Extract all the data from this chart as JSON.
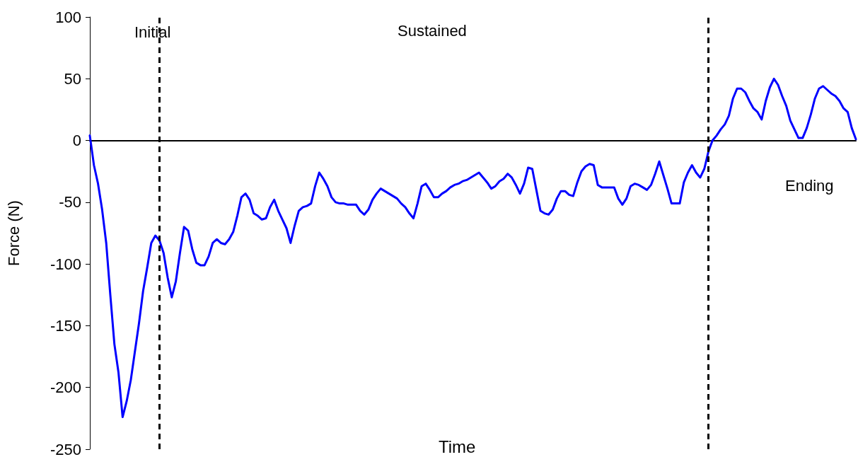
{
  "chart_data": {
    "type": "line",
    "xlabel": "Time",
    "ylabel": "Force (N)",
    "annotations": [
      "Initial",
      "Sustained",
      "Ending"
    ],
    "categories": [
      null,
      null,
      null,
      null,
      null,
      null,
      null,
      null,
      null,
      null,
      null,
      null,
      null,
      null,
      null,
      null,
      null,
      null,
      null,
      null,
      null,
      null,
      null,
      null,
      null,
      null,
      null,
      null,
      null,
      null,
      null,
      null,
      null,
      null,
      null,
      null,
      null,
      null,
      null,
      null,
      null,
      null,
      null,
      null,
      null,
      null,
      null,
      null,
      null,
      null,
      null,
      null,
      null,
      null,
      null,
      null,
      null,
      null,
      null,
      null,
      null,
      null,
      null,
      null,
      null,
      null,
      null,
      null,
      null,
      null,
      null,
      null,
      null,
      null,
      null,
      null,
      null,
      null,
      null,
      null,
      null,
      null,
      null,
      null,
      null,
      null,
      null,
      null,
      null,
      null,
      null,
      null,
      null,
      null,
      null,
      null,
      null,
      null,
      null,
      null,
      null,
      null,
      null,
      null,
      null,
      null,
      null,
      null,
      null,
      null,
      null,
      null,
      null,
      null,
      null,
      null,
      null,
      null,
      null,
      null,
      null,
      null,
      null,
      null,
      null,
      null,
      null,
      null,
      null,
      null,
      null,
      null,
      null,
      null,
      null,
      null,
      null,
      null,
      null,
      null,
      null,
      null,
      null,
      null,
      null,
      null,
      null,
      null,
      null,
      null,
      null,
      null,
      null,
      null,
      null,
      null,
      null,
      null,
      null,
      null,
      null,
      null,
      null,
      null,
      null,
      null,
      null,
      null,
      null,
      null,
      null,
      null,
      null,
      null,
      null,
      null,
      null,
      null,
      null,
      null,
      null,
      null,
      null,
      null,
      null,
      null,
      null,
      null
    ],
    "series": [
      {
        "color": "#0000ff",
        "values": [
          4,
          -20,
          -35,
          -56,
          -83,
          -125,
          -165,
          -188,
          -224,
          -211,
          -194,
          -171,
          -148,
          -122,
          -103,
          -83,
          -77,
          -81,
          -91,
          -111,
          -127,
          -114,
          -91,
          -70,
          -73,
          -88,
          -99,
          -101,
          -101,
          -94,
          -83,
          -80,
          -83,
          -84,
          -80,
          -74,
          -61,
          -46,
          -43,
          -48,
          -59,
          -61,
          -64,
          -63,
          -54,
          -48,
          -57,
          -64,
          -71,
          -83,
          -69,
          -57,
          -54,
          -53,
          -51,
          -37,
          -26,
          -31,
          -37,
          -46,
          -50,
          -51,
          -51,
          -52,
          -52,
          -52,
          -57,
          -60,
          -56,
          -48,
          -43,
          -39,
          -41,
          -43,
          -45,
          -47,
          -51,
          -54,
          -59,
          -63,
          -51,
          -37,
          -35,
          -40,
          -46,
          -46,
          -43,
          -41,
          -38,
          -36,
          -35,
          -33,
          -32,
          -30,
          -28,
          -26,
          -30,
          -34,
          -39,
          -37,
          -33,
          -31,
          -27,
          -30,
          -36,
          -43,
          -35,
          -22,
          -23,
          -40,
          -57,
          -59,
          -60,
          -56,
          -47,
          -41,
          -41,
          -44,
          -45,
          -34,
          -25,
          -21,
          -19,
          -20,
          -36,
          -38,
          -38,
          -38,
          -38,
          -47,
          -52,
          -47,
          -37,
          -35,
          -36,
          -38,
          -40,
          -36,
          -27,
          -17,
          -28,
          -39,
          -51,
          -51,
          -51,
          -34,
          -26,
          -20,
          -26,
          -30,
          -23,
          -9,
          0,
          4,
          9,
          13,
          20,
          34,
          42,
          42,
          39,
          32,
          26,
          23,
          17,
          32,
          43,
          50,
          45,
          36,
          28,
          16,
          9,
          2,
          2,
          10,
          21,
          34,
          42,
          44,
          41,
          38,
          36,
          32,
          26,
          23,
          10,
          1
        ]
      }
    ],
    "ylim": [
      -250,
      100
    ],
    "yticks": [
      -250,
      -200,
      -150,
      -100,
      -50,
      0,
      50,
      100
    ],
    "tick_labels": "y",
    "grid": false,
    "line_style": "solid"
  }
}
